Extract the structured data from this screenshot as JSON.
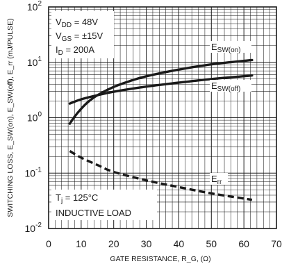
{
  "chart_data": {
    "type": "line",
    "title": "",
    "xlabel": "GATE RESISTANCE, R_G, (Ω)",
    "ylabel": "SWITCHING LOSS, E_SW(on), E_SW(off), E_rr (mJ/PULSE)",
    "x_axis": {
      "scale": "linear",
      "range": [
        0,
        70
      ],
      "ticks": [
        0,
        10,
        20,
        30,
        40,
        50,
        60,
        70
      ],
      "tick_labels": [
        "0",
        "10",
        "20",
        "30",
        "40",
        "50",
        "60",
        "70"
      ],
      "minor_step": 2
    },
    "y_axis": {
      "scale": "log",
      "range": [
        0.01,
        100
      ],
      "decades": [
        {
          "value": 0.01,
          "mantissa": "10",
          "exponent": "-2"
        },
        {
          "value": 0.1,
          "mantissa": "10",
          "exponent": "-1"
        },
        {
          "value": 1,
          "mantissa": "10",
          "exponent": "0"
        },
        {
          "value": 10,
          "mantissa": "10",
          "exponent": "1"
        },
        {
          "value": 100,
          "mantissa": "10",
          "exponent": "2"
        }
      ]
    },
    "grid": true,
    "conditions": {
      "vdd": {
        "base": "V",
        "sub": "DD",
        "rest": " = 48V"
      },
      "vgs": {
        "base": "V",
        "sub": "GS",
        "rest": " = ±15V"
      },
      "id": {
        "base": "I",
        "sub": "D",
        "rest": " = 200A"
      },
      "tj": {
        "base": "T",
        "sub": "j",
        "rest": " = 125°C"
      },
      "load": "INDUCTIVE LOAD"
    },
    "series": [
      {
        "base": "E",
        "sub": "SW(on)",
        "color": "#1a1a1a",
        "dash": "solid",
        "x": [
          6.5,
          8,
          10,
          12,
          15,
          20,
          25,
          30,
          40,
          50,
          62.5
        ],
        "y": [
          0.78,
          1.05,
          1.45,
          1.9,
          2.55,
          3.6,
          4.6,
          5.6,
          7.4,
          9.2,
          11.0
        ]
      },
      {
        "base": "E",
        "sub": "SW(off)",
        "color": "#1a1a1a",
        "dash": "solid",
        "x": [
          6.5,
          10,
          15,
          20,
          30,
          40,
          50,
          62.5
        ],
        "y": [
          1.8,
          2.15,
          2.55,
          2.95,
          3.65,
          4.3,
          5.0,
          5.8
        ]
      },
      {
        "base": "E",
        "sub": "rr",
        "color": "#1a1a1a",
        "dash": "dashed",
        "x": [
          6.5,
          10,
          15,
          20,
          30,
          40,
          50,
          62.5
        ],
        "y": [
          0.25,
          0.19,
          0.14,
          0.105,
          0.074,
          0.056,
          0.043,
          0.033
        ]
      }
    ]
  }
}
